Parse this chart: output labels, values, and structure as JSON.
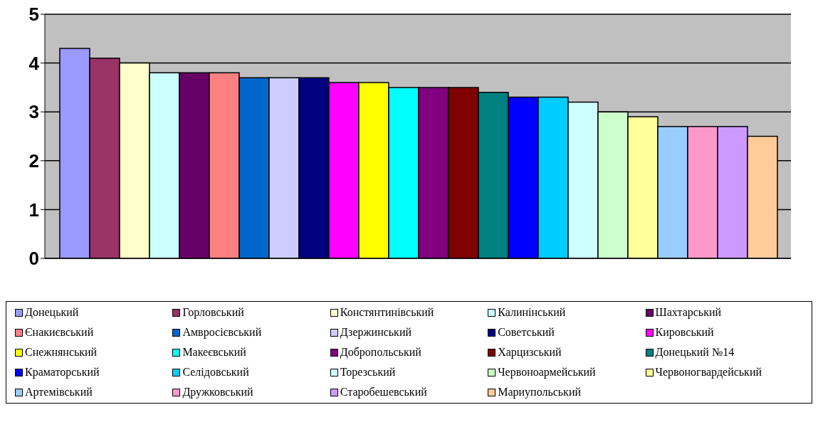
{
  "chart_data": {
    "type": "bar",
    "categories": [
      null
    ],
    "series": [
      {
        "name": "Донецький",
        "color": "#9999ff",
        "values": [
          4.3
        ]
      },
      {
        "name": "Горловський",
        "color": "#993366",
        "values": [
          4.1
        ]
      },
      {
        "name": "Констянтинівський",
        "color": "#ffffcc",
        "values": [
          4.0
        ]
      },
      {
        "name": "Калинінський",
        "color": "#ccffff",
        "values": [
          3.8
        ]
      },
      {
        "name": "Шахтарський",
        "color": "#660066",
        "values": [
          3.8
        ]
      },
      {
        "name": "Єнакиєвський",
        "color": "#ff8080",
        "values": [
          3.8
        ]
      },
      {
        "name": "Амвросієвський",
        "color": "#0066cc",
        "values": [
          3.7
        ]
      },
      {
        "name": "Дзержинський",
        "color": "#ccccff",
        "values": [
          3.7
        ]
      },
      {
        "name": "Советський",
        "color": "#000080",
        "values": [
          3.7
        ]
      },
      {
        "name": "Кировський",
        "color": "#ff00ff",
        "values": [
          3.6
        ]
      },
      {
        "name": "Снежнянський",
        "color": "#ffff00",
        "values": [
          3.6
        ]
      },
      {
        "name": "Макеєвський",
        "color": "#00ffff",
        "values": [
          3.5
        ]
      },
      {
        "name": "Добропольський",
        "color": "#800080",
        "values": [
          3.5
        ]
      },
      {
        "name": "Харцизський",
        "color": "#800000",
        "values": [
          3.5
        ]
      },
      {
        "name": "Донецький №14",
        "color": "#008080",
        "values": [
          3.4
        ]
      },
      {
        "name": "Краматорський",
        "color": "#0000ff",
        "values": [
          3.3
        ]
      },
      {
        "name": "Селідовський",
        "color": "#00ccff",
        "values": [
          3.3
        ]
      },
      {
        "name": "Торезський",
        "color": "#ccffff",
        "values": [
          3.2
        ]
      },
      {
        "name": "Червоноармейський",
        "color": "#ccffcc",
        "values": [
          3.0
        ]
      },
      {
        "name": "Червоногвардейський",
        "color": "#ffff99",
        "values": [
          2.9
        ]
      },
      {
        "name": "Артемівський",
        "color": "#99ccff",
        "values": [
          2.7
        ]
      },
      {
        "name": "Дружковський",
        "color": "#ff99cc",
        "values": [
          2.7
        ]
      },
      {
        "name": "Старобешевський",
        "color": "#cc99ff",
        "values": [
          2.7
        ]
      },
      {
        "name": "Мариупольський",
        "color": "#ffcc99",
        "values": [
          2.5
        ]
      }
    ],
    "ylim": [
      0,
      5
    ],
    "yticks": [
      0,
      1,
      2,
      3,
      4,
      5
    ],
    "grid": "y",
    "legend": "bottom"
  }
}
